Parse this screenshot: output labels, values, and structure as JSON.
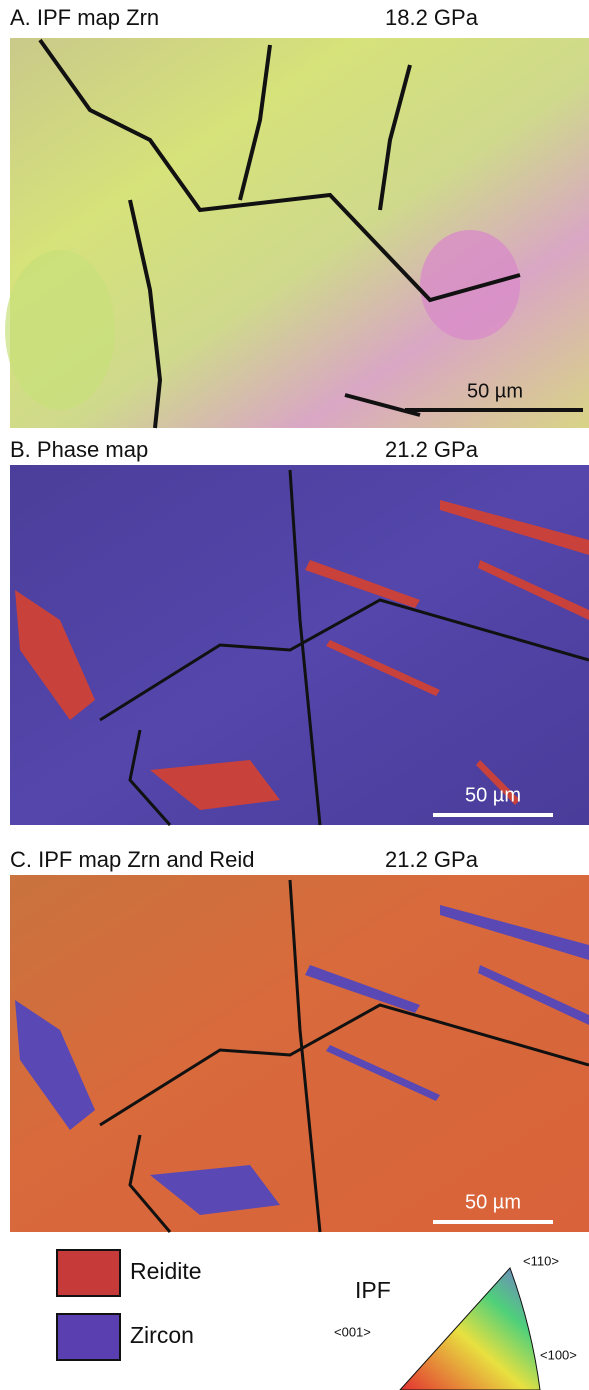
{
  "panels": [
    {
      "title": "A. IPF map Zrn",
      "pressure": "18.2 GPa",
      "scale_bar": "50 µm"
    },
    {
      "title": "B. Phase map",
      "pressure": "21.2 GPa",
      "scale_bar": "50 µm"
    },
    {
      "title": "C. IPF map Zrn and Reid",
      "pressure": "21.2 GPa",
      "scale_bar": "50 µm"
    }
  ],
  "legend": {
    "items": [
      "Reidite",
      "Zircon"
    ],
    "ipf_title": "IPF",
    "ipf_labels": [
      "<110>",
      "<001>",
      "<100>"
    ]
  }
}
